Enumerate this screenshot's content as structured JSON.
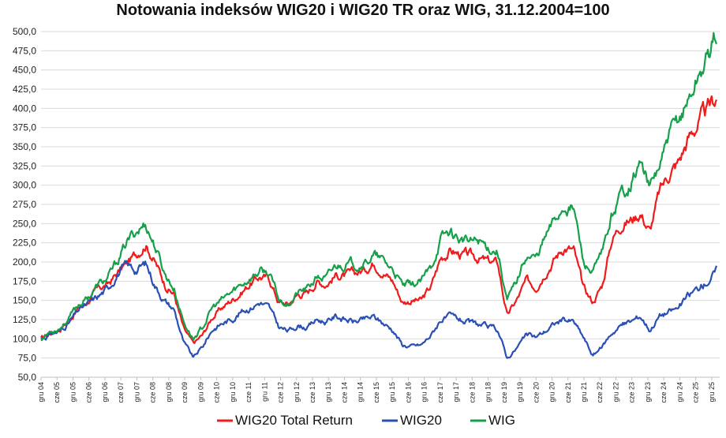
{
  "chart_data": {
    "type": "line",
    "title": "Notowania indeksów WIG20 i WIG20 TR oraz WIG, 31.12.2004=100",
    "xlabel": "",
    "ylabel": "",
    "ylim": [
      50,
      500
    ],
    "y_ticks": [
      "50,0",
      "75,0",
      "100,0",
      "125,0",
      "150,0",
      "175,0",
      "200,0",
      "225,0",
      "250,0",
      "275,0",
      "300,0",
      "325,0",
      "350,0",
      "375,0",
      "400,0",
      "425,0",
      "450,0",
      "475,0",
      "500,0"
    ],
    "x_ticks": [
      "gru 04",
      "cze 05",
      "gru 05",
      "cze 06",
      "gru 06",
      "cze 07",
      "gru 07",
      "cze 08",
      "gru 08",
      "cze 09",
      "gru 09",
      "cze 10",
      "gru 10",
      "cze 11",
      "gru 11",
      "cze 12",
      "gru 12",
      "cze 13",
      "gru 13",
      "cze 14",
      "gru 14",
      "cze 15",
      "gru 15",
      "cze 16",
      "gru 16",
      "cze 17",
      "gru 17",
      "cze 18",
      "gru 18",
      "cze 19",
      "gru 19",
      "cze 20",
      "gru 20",
      "cze 21",
      "gru 21",
      "cze 22",
      "gru 22",
      "cze 23",
      "gru 23",
      "cze 24",
      "gru 24",
      "cze 25",
      "gru 25"
    ],
    "grid": true,
    "legend_position": "bottom",
    "series": [
      {
        "name": "WIG20 Total Return",
        "color": "#ee1c1c",
        "values": [
          100,
          108,
          113,
          126,
          140,
          150,
          165,
          170,
          185,
          198,
          210,
          225,
          200,
          172,
          158,
          112,
          93,
          105,
          128,
          140,
          150,
          160,
          172,
          181,
          178,
          148,
          145,
          158,
          160,
          175,
          172,
          183,
          182,
          185,
          190,
          200,
          188,
          175,
          148,
          150,
          150,
          168,
          205,
          215,
          210,
          208,
          205,
          200,
          198,
          130,
          150,
          175,
          168,
          188,
          205,
          220,
          215,
          165,
          148,
          170,
          230,
          250,
          255,
          265,
          240,
          290,
          315,
          330,
          360,
          380,
          395,
          415
        ]
      },
      {
        "name": "WIG20",
        "color": "#2a4fb5",
        "values": [
          100,
          106,
          110,
          122,
          138,
          145,
          155,
          165,
          185,
          195,
          190,
          198,
          170,
          150,
          138,
          95,
          75,
          90,
          112,
          120,
          125,
          135,
          141,
          148,
          140,
          115,
          110,
          118,
          115,
          125,
          122,
          130,
          125,
          122,
          125,
          128,
          120,
          112,
          92,
          90,
          92,
          105,
          125,
          128,
          125,
          120,
          118,
          115,
          112,
          75,
          88,
          105,
          102,
          110,
          120,
          125,
          122,
          102,
          78,
          90,
          108,
          118,
          122,
          130,
          112,
          130,
          135,
          140,
          155,
          165,
          175,
          188
        ]
      },
      {
        "name": "WIG",
        "color": "#16a04a",
        "values": [
          100,
          110,
          115,
          128,
          145,
          155,
          170,
          178,
          200,
          225,
          240,
          250,
          220,
          185,
          165,
          122,
          100,
          115,
          140,
          150,
          160,
          170,
          180,
          188,
          185,
          150,
          147,
          160,
          165,
          180,
          178,
          195,
          198,
          197,
          200,
          208,
          200,
          190,
          168,
          170,
          175,
          192,
          230,
          240,
          230,
          225,
          228,
          220,
          215,
          150,
          175,
          210,
          205,
          232,
          255,
          275,
          270,
          200,
          185,
          210,
          260,
          290,
          305,
          330,
          295,
          325,
          360,
          385,
          410,
          440,
          465,
          498
        ]
      }
    ]
  }
}
